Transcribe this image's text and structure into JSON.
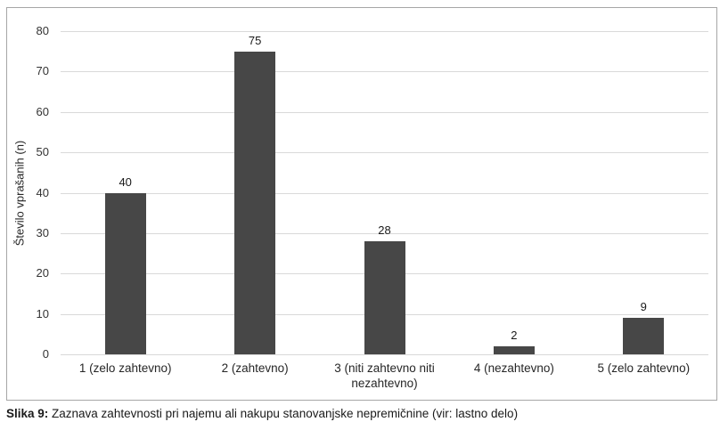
{
  "chart_data": {
    "type": "bar",
    "title": "",
    "categories": [
      "1 (zelo zahtevno)",
      "2 (zahtevno)",
      "3 (niti zahtevno niti nezahtevno)",
      "4 (nezahtevno)",
      "5 (zelo zahtevno)"
    ],
    "values": [
      40,
      75,
      28,
      2,
      9
    ],
    "value_labels": [
      "40",
      "75",
      "28",
      "2",
      "9"
    ],
    "xlabel": "",
    "ylabel": "Število vprašanih (n)",
    "ylim": [
      0,
      80
    ],
    "yticks": [
      0,
      10,
      20,
      30,
      40,
      50,
      60,
      70,
      80
    ],
    "grid": true,
    "legend": "none",
    "bar_color": "#474747"
  },
  "colors": {
    "bar": "#474747",
    "gridline": "#d9d9d9",
    "frame_border": "#a6a6a6",
    "text": "#262626"
  },
  "caption": {
    "label": "Slika 9:",
    "text": " Zaznava zahtevnosti pri najemu ali nakupu stanovanjske nepremičnine (vir: lastno delo)"
  }
}
